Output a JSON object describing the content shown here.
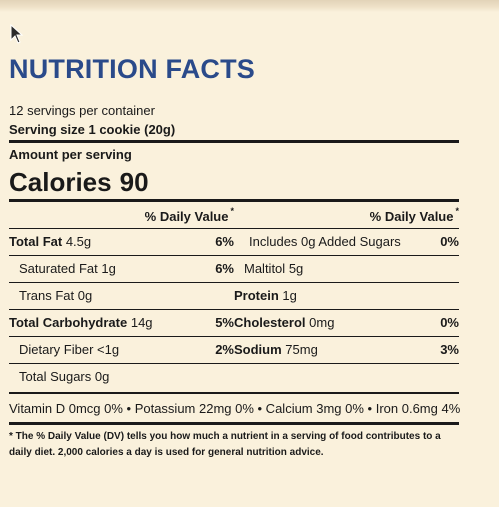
{
  "header": {
    "title": "NUTRITION FACTS"
  },
  "serving": {
    "servings_per_container": "12 servings per container",
    "serving_size": "Serving size 1 cookie (20g)"
  },
  "amount_label": "Amount per serving",
  "calories": {
    "label": "Calories",
    "value": "90"
  },
  "dv_header": "% Daily Value",
  "dv_star": "*",
  "left_column": [
    {
      "name": "Total Fat",
      "amount": "4.5g",
      "pct": "6%",
      "bold": true
    },
    {
      "name": "Saturated Fat",
      "amount": "1g",
      "pct": "6%",
      "bold": false
    },
    {
      "name": "Trans Fat",
      "amount": "0g",
      "pct": "",
      "bold": false
    },
    {
      "name": "Total Carbohydrate",
      "amount": "14g",
      "pct": "5%",
      "bold": true
    },
    {
      "name": "Dietary Fiber",
      "amount": "<1g",
      "pct": "2%",
      "bold": false
    },
    {
      "name": "Total Sugars",
      "amount": "0g",
      "pct": "",
      "bold": false
    }
  ],
  "right_column": [
    {
      "name": "Includes 0g Added Sugars",
      "amount": "",
      "pct": "0%",
      "bold": false
    },
    {
      "name": "Maltitol",
      "amount": "5g",
      "pct": "",
      "bold": false
    },
    {
      "name": "Protein",
      "amount": "1g",
      "pct": "",
      "bold": true
    },
    {
      "name": "Cholesterol",
      "amount": "0mg",
      "pct": "0%",
      "bold": true
    },
    {
      "name": "Sodium",
      "amount": "75mg",
      "pct": "3%",
      "bold": true
    }
  ],
  "vitamins": "Vitamin D 0mcg 0% • Potassium 22mg 0% • Calcium 3mg 0% • Iron 0.6mg 4%",
  "footnote": "* The % Daily Value (DV) tells you how much a nutrient in a serving of food contributes to a daily diet. 2,000 calories a day is used for general nutrition advice.",
  "icons": {
    "cursor": "mouse-pointer-icon"
  }
}
